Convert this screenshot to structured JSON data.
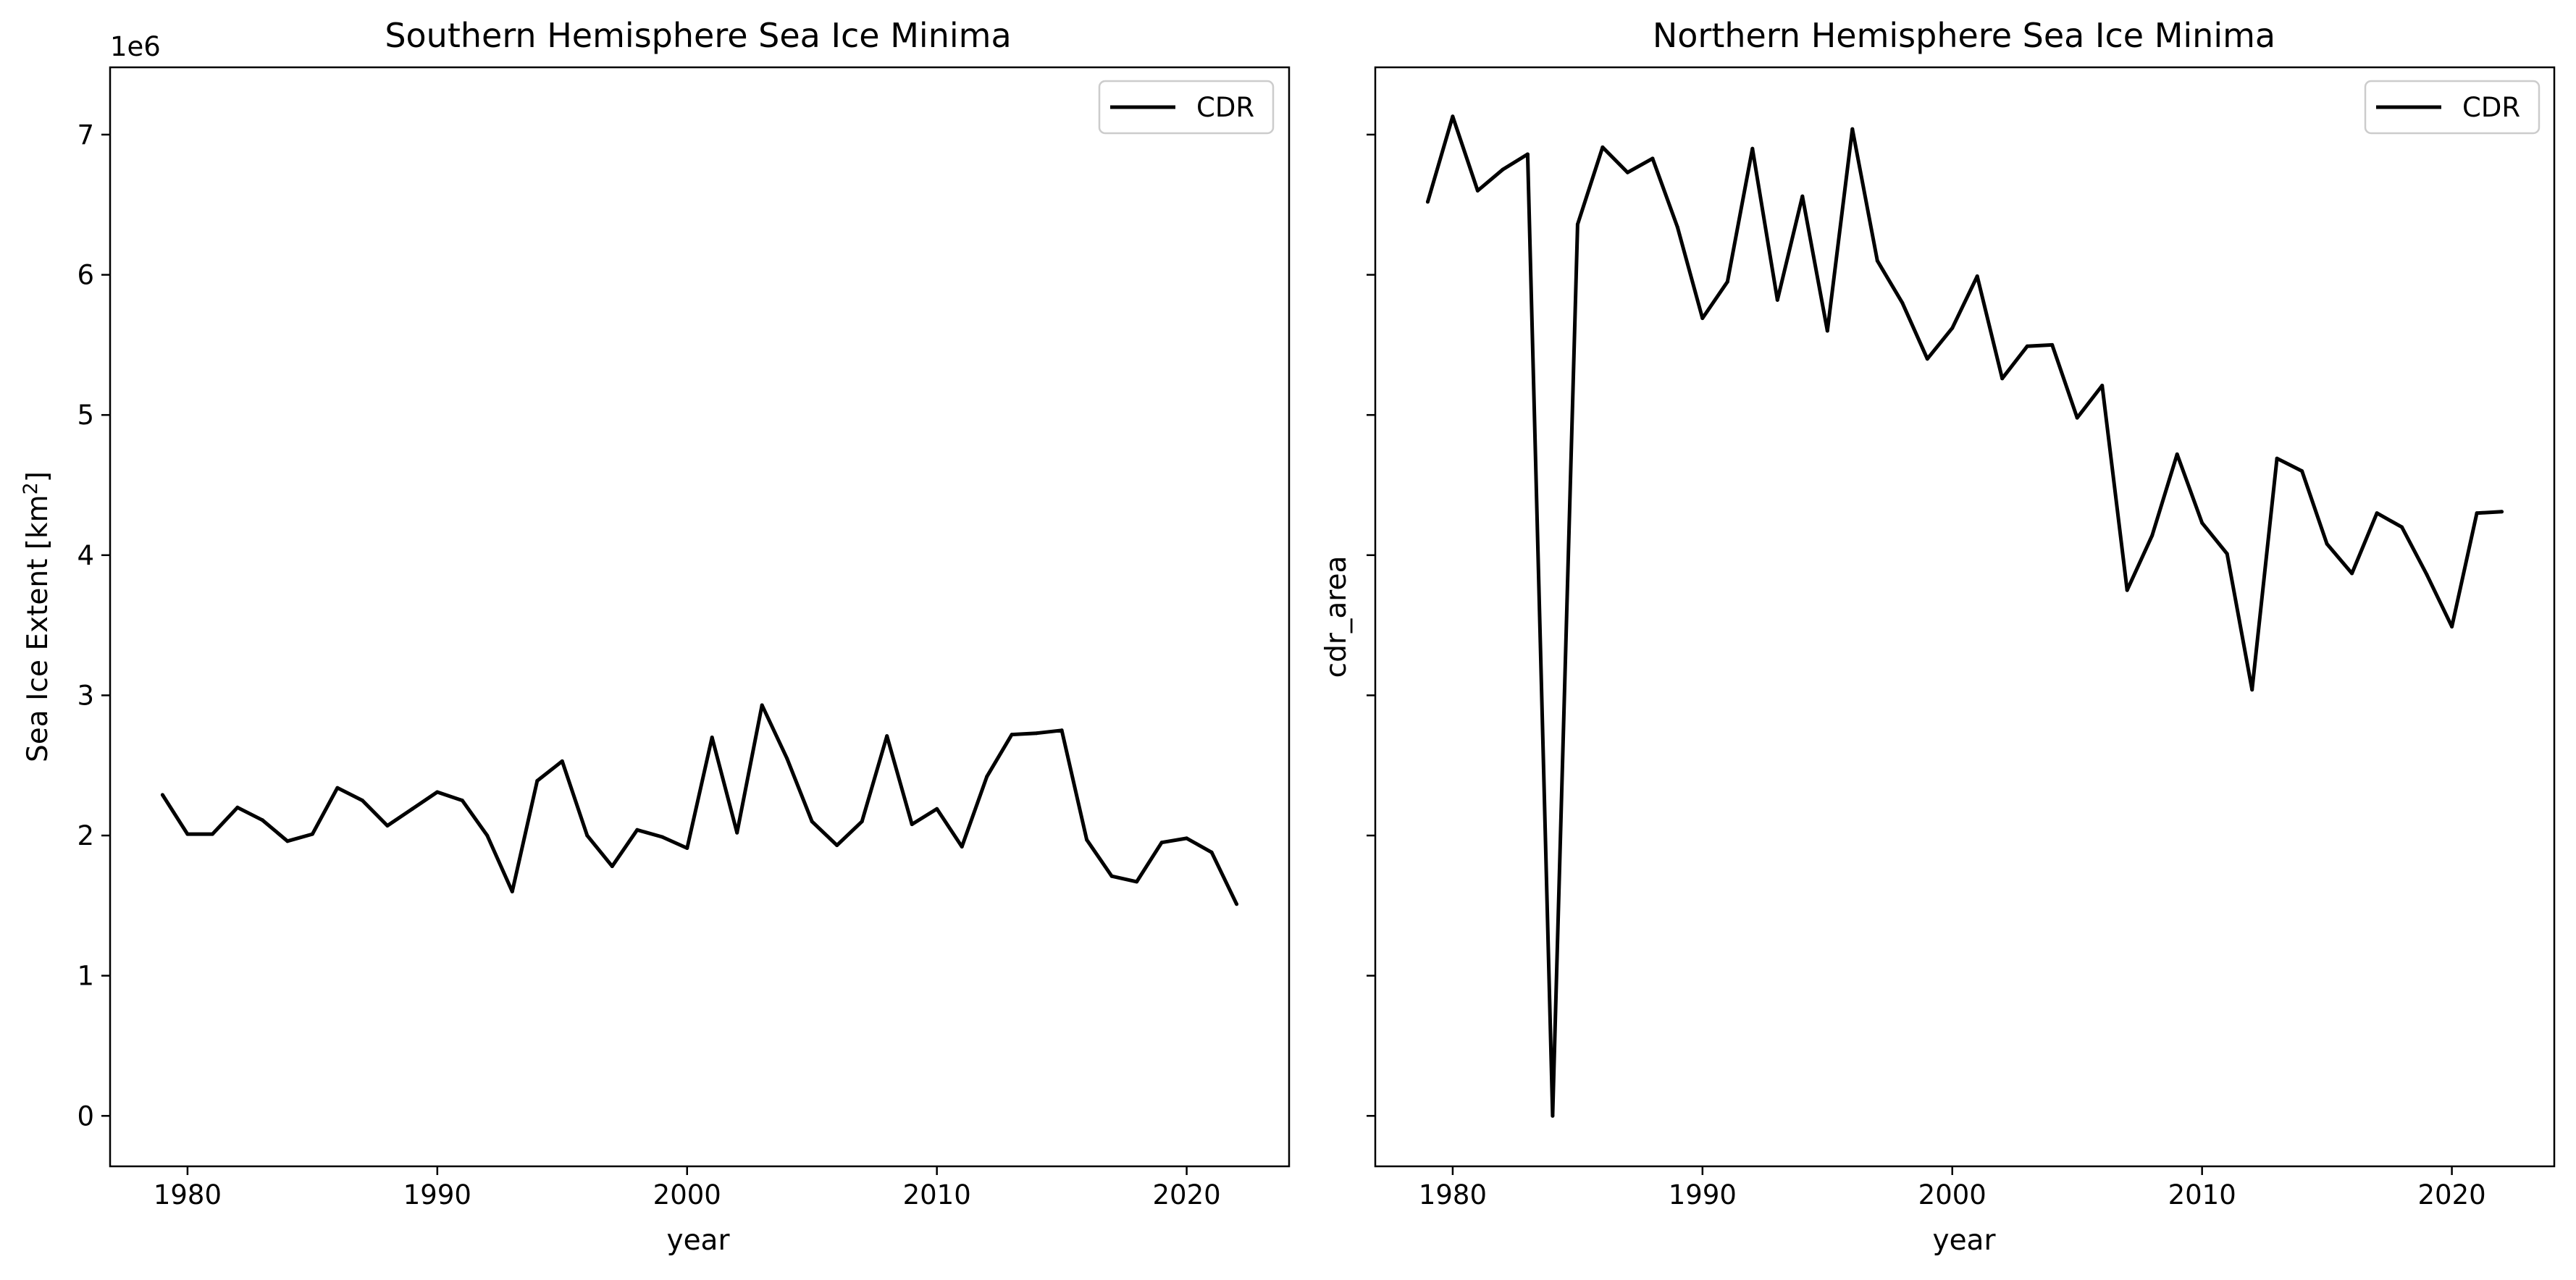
{
  "chart_data": [
    {
      "type": "line",
      "title": "Southern Hemisphere Sea Ice Minima",
      "xlabel": "year",
      "ylabel_parts": {
        "main": "Sea Ice Extent [km",
        "sup": "2",
        "end": "]"
      },
      "y_offset_label": "1e6",
      "y_scale": 1000000,
      "xlim": [
        1976.9,
        2024.1
      ],
      "ylim": [
        -360000,
        7480000
      ],
      "x_ticks": [
        1980,
        1990,
        2000,
        2010,
        2020
      ],
      "x_tick_labels": [
        "1980",
        "1990",
        "2000",
        "2010",
        "2020"
      ],
      "y_ticks": [
        0,
        1000000,
        2000000,
        3000000,
        4000000,
        5000000,
        6000000,
        7000000
      ],
      "y_tick_labels": [
        "0",
        "1",
        "2",
        "3",
        "4",
        "5",
        "6",
        "7"
      ],
      "show_y_tick_labels": true,
      "grid": false,
      "legend": {
        "position": "top-right",
        "entries": [
          "CDR"
        ]
      },
      "series": [
        {
          "name": "CDR",
          "color": "#000000",
          "x": [
            1979,
            1980,
            1981,
            1982,
            1983,
            1984,
            1985,
            1986,
            1987,
            1988,
            1989,
            1990,
            1991,
            1992,
            1993,
            1994,
            1995,
            1996,
            1997,
            1998,
            1999,
            2000,
            2001,
            2002,
            2003,
            2004,
            2005,
            2006,
            2007,
            2008,
            2009,
            2010,
            2011,
            2012,
            2013,
            2014,
            2015,
            2016,
            2017,
            2018,
            2019,
            2020,
            2021,
            2022
          ],
          "values": [
            2290000,
            2010000,
            2010000,
            2200000,
            2110000,
            1960000,
            2010000,
            2340000,
            2250000,
            2070000,
            2190000,
            2310000,
            2250000,
            2000000,
            1600000,
            2390000,
            2530000,
            2000000,
            1780000,
            2040000,
            1990000,
            1910000,
            2700000,
            2020000,
            2930000,
            2550000,
            2100000,
            1930000,
            2100000,
            2710000,
            2080000,
            2190000,
            1920000,
            2420000,
            2720000,
            2730000,
            2750000,
            1970000,
            1710000,
            1670000,
            1950000,
            1980000,
            1880000,
            1510000
          ]
        }
      ]
    },
    {
      "type": "line",
      "title": "Northern Hemisphere Sea Ice Minima",
      "xlabel": "year",
      "ylabel": "cdr_area",
      "xlim": [
        1976.9,
        2024.1
      ],
      "ylim": [
        -360000,
        7480000
      ],
      "x_ticks": [
        1980,
        1990,
        2000,
        2010,
        2020
      ],
      "x_tick_labels": [
        "1980",
        "1990",
        "2000",
        "2010",
        "2020"
      ],
      "y_ticks": [
        0,
        1000000,
        2000000,
        3000000,
        4000000,
        5000000,
        6000000,
        7000000
      ],
      "show_y_tick_labels": false,
      "grid": false,
      "legend": {
        "position": "top-right",
        "entries": [
          "CDR"
        ]
      },
      "series": [
        {
          "name": "CDR",
          "color": "#000000",
          "x": [
            1979,
            1980,
            1981,
            1982,
            1983,
            1984,
            1985,
            1986,
            1987,
            1988,
            1989,
            1990,
            1991,
            1992,
            1993,
            1994,
            1995,
            1996,
            1997,
            1998,
            1999,
            2000,
            2001,
            2002,
            2003,
            2004,
            2005,
            2006,
            2007,
            2008,
            2009,
            2010,
            2011,
            2012,
            2013,
            2014,
            2015,
            2016,
            2017,
            2018,
            2019,
            2020,
            2021,
            2022
          ],
          "values": [
            6520000,
            7130000,
            6600000,
            6750000,
            6860000,
            0,
            6360000,
            6910000,
            6730000,
            6830000,
            6340000,
            5690000,
            5950000,
            6900000,
            5820000,
            6560000,
            5600000,
            7040000,
            6100000,
            5800000,
            5400000,
            5620000,
            5990000,
            5260000,
            5490000,
            5500000,
            4980000,
            5210000,
            3750000,
            4140000,
            4720000,
            4230000,
            4010000,
            3040000,
            4690000,
            4600000,
            4080000,
            3870000,
            4300000,
            4200000,
            3860000,
            3490000,
            4300000,
            4310000
          ]
        }
      ]
    }
  ]
}
